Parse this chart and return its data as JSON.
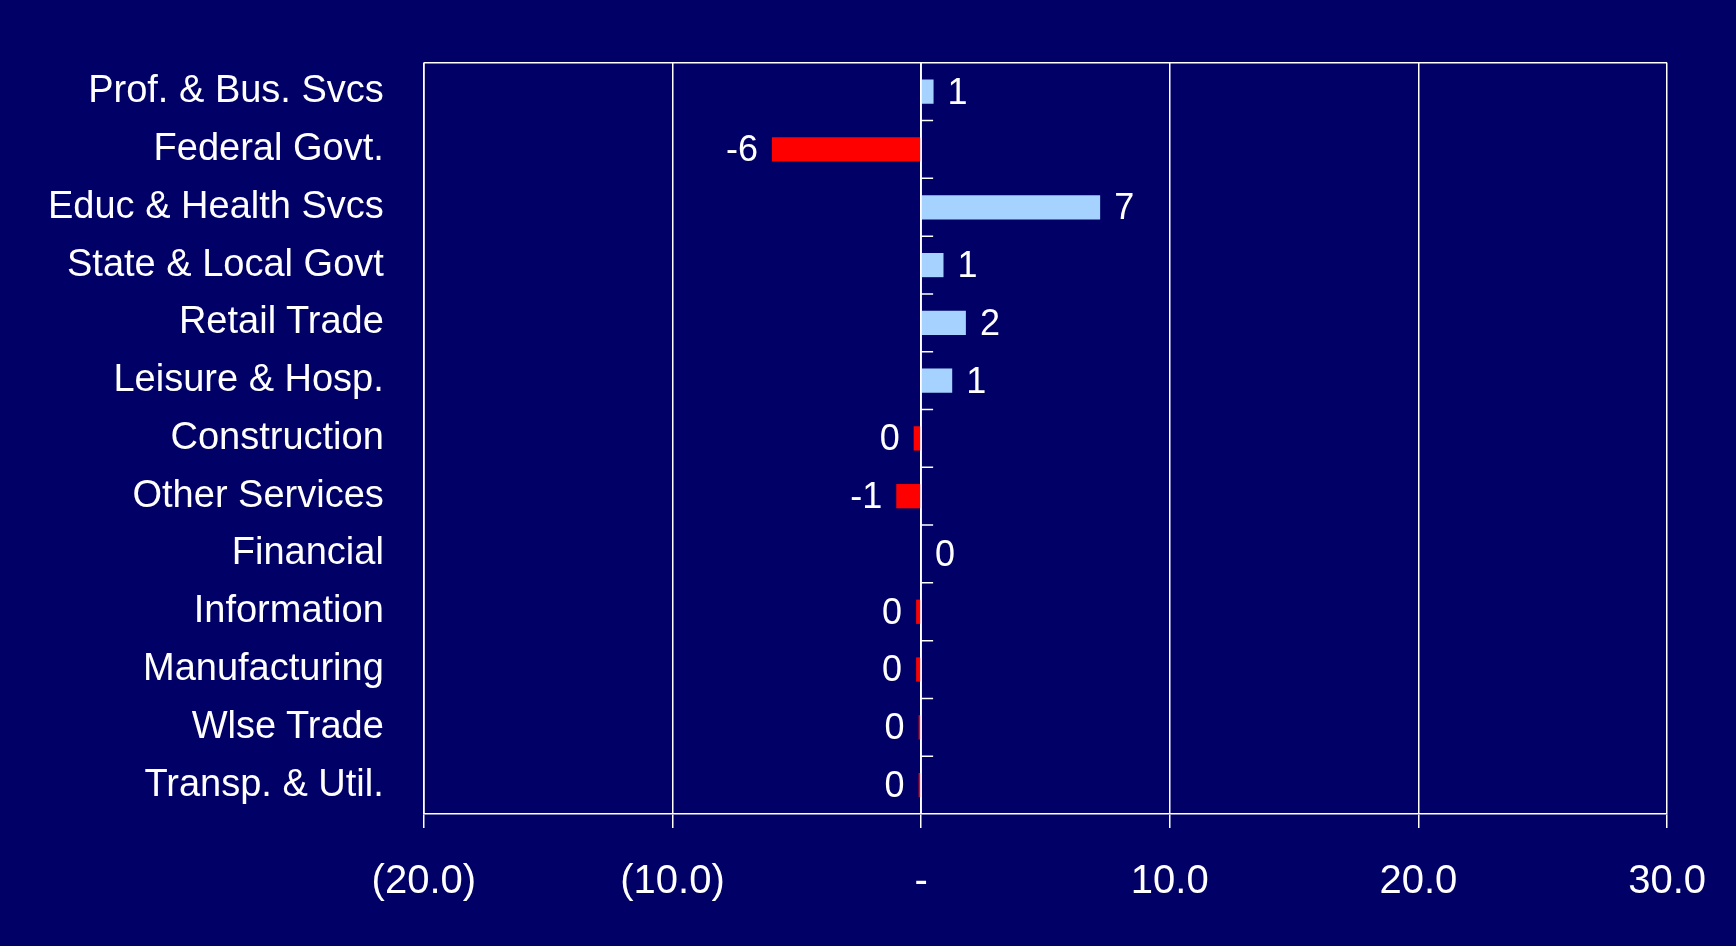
{
  "chart_data": {
    "type": "bar",
    "orientation": "horizontal",
    "categories": [
      "Prof. & Bus. Svcs",
      "Federal Govt.",
      "Educ & Health Svcs",
      "State & Local Govt",
      "Retail Trade",
      "Leisure & Hosp.",
      "Construction",
      "Other Services",
      "Financial",
      "Information",
      "Manufacturing",
      "Wlse Trade",
      "Transp. & Util."
    ],
    "values": [
      0.5,
      -6.0,
      7.2,
      0.9,
      1.8,
      1.25,
      -0.3,
      -1.0,
      0,
      -0.2,
      -0.2,
      -0.1,
      -0.1
    ],
    "colors": [
      "#a6d2ff",
      "#ff0000",
      "#a6d2ff",
      "#a6d2ff",
      "#a6d2ff",
      "#a6d2ff",
      "#ff0000",
      "#ff0000",
      "#a6d2ff",
      "#ff0000",
      "#ff0000",
      "#ff0000",
      "#ff0000"
    ],
    "value_labels": [
      "1",
      "-6",
      "7",
      "1",
      "2",
      "1",
      "0",
      "-1",
      "0",
      "0",
      "0",
      "0",
      "0"
    ],
    "xlim": [
      -20,
      30
    ],
    "xticks": [
      {
        "value": -20,
        "label": "(20.0)"
      },
      {
        "value": -10,
        "label": "(10.0)"
      },
      {
        "value": 0,
        "label": "-"
      },
      {
        "value": 10,
        "label": "10.0"
      },
      {
        "value": 20,
        "label": "20.0"
      },
      {
        "value": 30,
        "label": "30.0"
      }
    ],
    "grid": "x",
    "legend": false
  }
}
